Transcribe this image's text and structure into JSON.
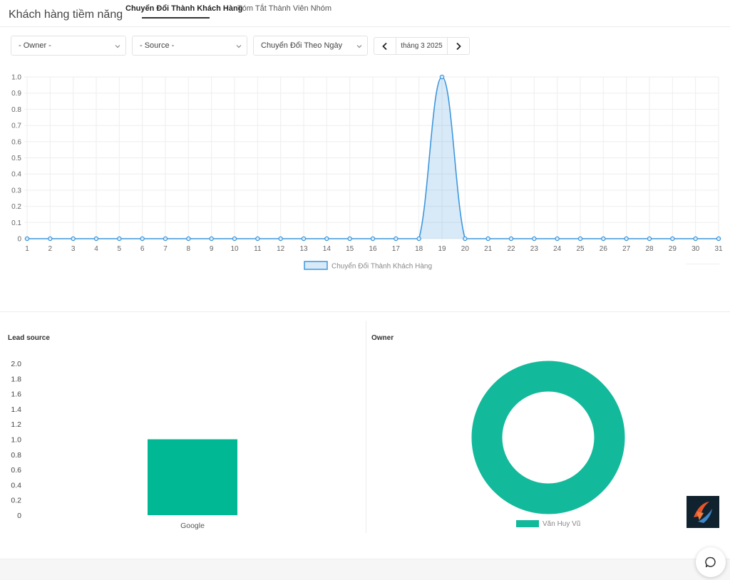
{
  "header": {
    "title": "Khách hàng tiềm năng",
    "tabs": [
      {
        "label": "Chuyển Đổi Thành Khách Hàng",
        "active": true
      },
      {
        "label": "Tóm Tắt Thành Viên Nhóm",
        "active": false
      }
    ]
  },
  "filters": {
    "owner": "- Owner -",
    "source": "- Source -",
    "mode": "Chuyển Đổi Theo Ngày",
    "date_label": "tháng 3 2025",
    "prev_icon": "chevron-left-icon",
    "next_icon": "chevron-right-icon"
  },
  "panels": {
    "lead_source_title": "Lead source",
    "owner_title": "Owner"
  },
  "chart_data": [
    {
      "type": "area",
      "x": [
        1,
        2,
        3,
        4,
        5,
        6,
        7,
        8,
        9,
        10,
        11,
        12,
        13,
        14,
        15,
        16,
        17,
        18,
        19,
        20,
        21,
        22,
        23,
        24,
        25,
        26,
        27,
        28,
        29,
        30,
        31
      ],
      "series": [
        {
          "name": "Chuyển Đổi Thành Khách Hàng",
          "values": [
            0,
            0,
            0,
            0,
            0,
            0,
            0,
            0,
            0,
            0,
            0,
            0,
            0,
            0,
            0,
            0,
            0,
            0,
            1,
            0,
            0,
            0,
            0,
            0,
            0,
            0,
            0,
            0,
            0,
            0,
            0
          ]
        }
      ],
      "ylim": [
        0,
        1
      ],
      "yticks": [
        "0",
        "0.1",
        "0.2",
        "0.3",
        "0.4",
        "0.5",
        "0.6",
        "0.7",
        "0.8",
        "0.9",
        "1.0"
      ],
      "grid": true,
      "legend": "bottom",
      "color": "#3d97dd"
    },
    {
      "type": "bar",
      "categories": [
        "Google"
      ],
      "values": [
        1
      ],
      "ylim": [
        0,
        2
      ],
      "yticks": [
        "0",
        "0.2",
        "0.4",
        "0.6",
        "0.8",
        "1.0",
        "1.2",
        "1.4",
        "1.6",
        "1.8",
        "2.0"
      ],
      "color": "#00b894"
    },
    {
      "type": "pie",
      "donut": true,
      "series": [
        {
          "name": "Văn Huy Vũ",
          "values": [
            1
          ]
        }
      ],
      "legend": "bottom",
      "color": "#13b99b"
    }
  ],
  "icons": {
    "logo": "brand-logo-icon",
    "chat": "chat-bubble-icon"
  }
}
